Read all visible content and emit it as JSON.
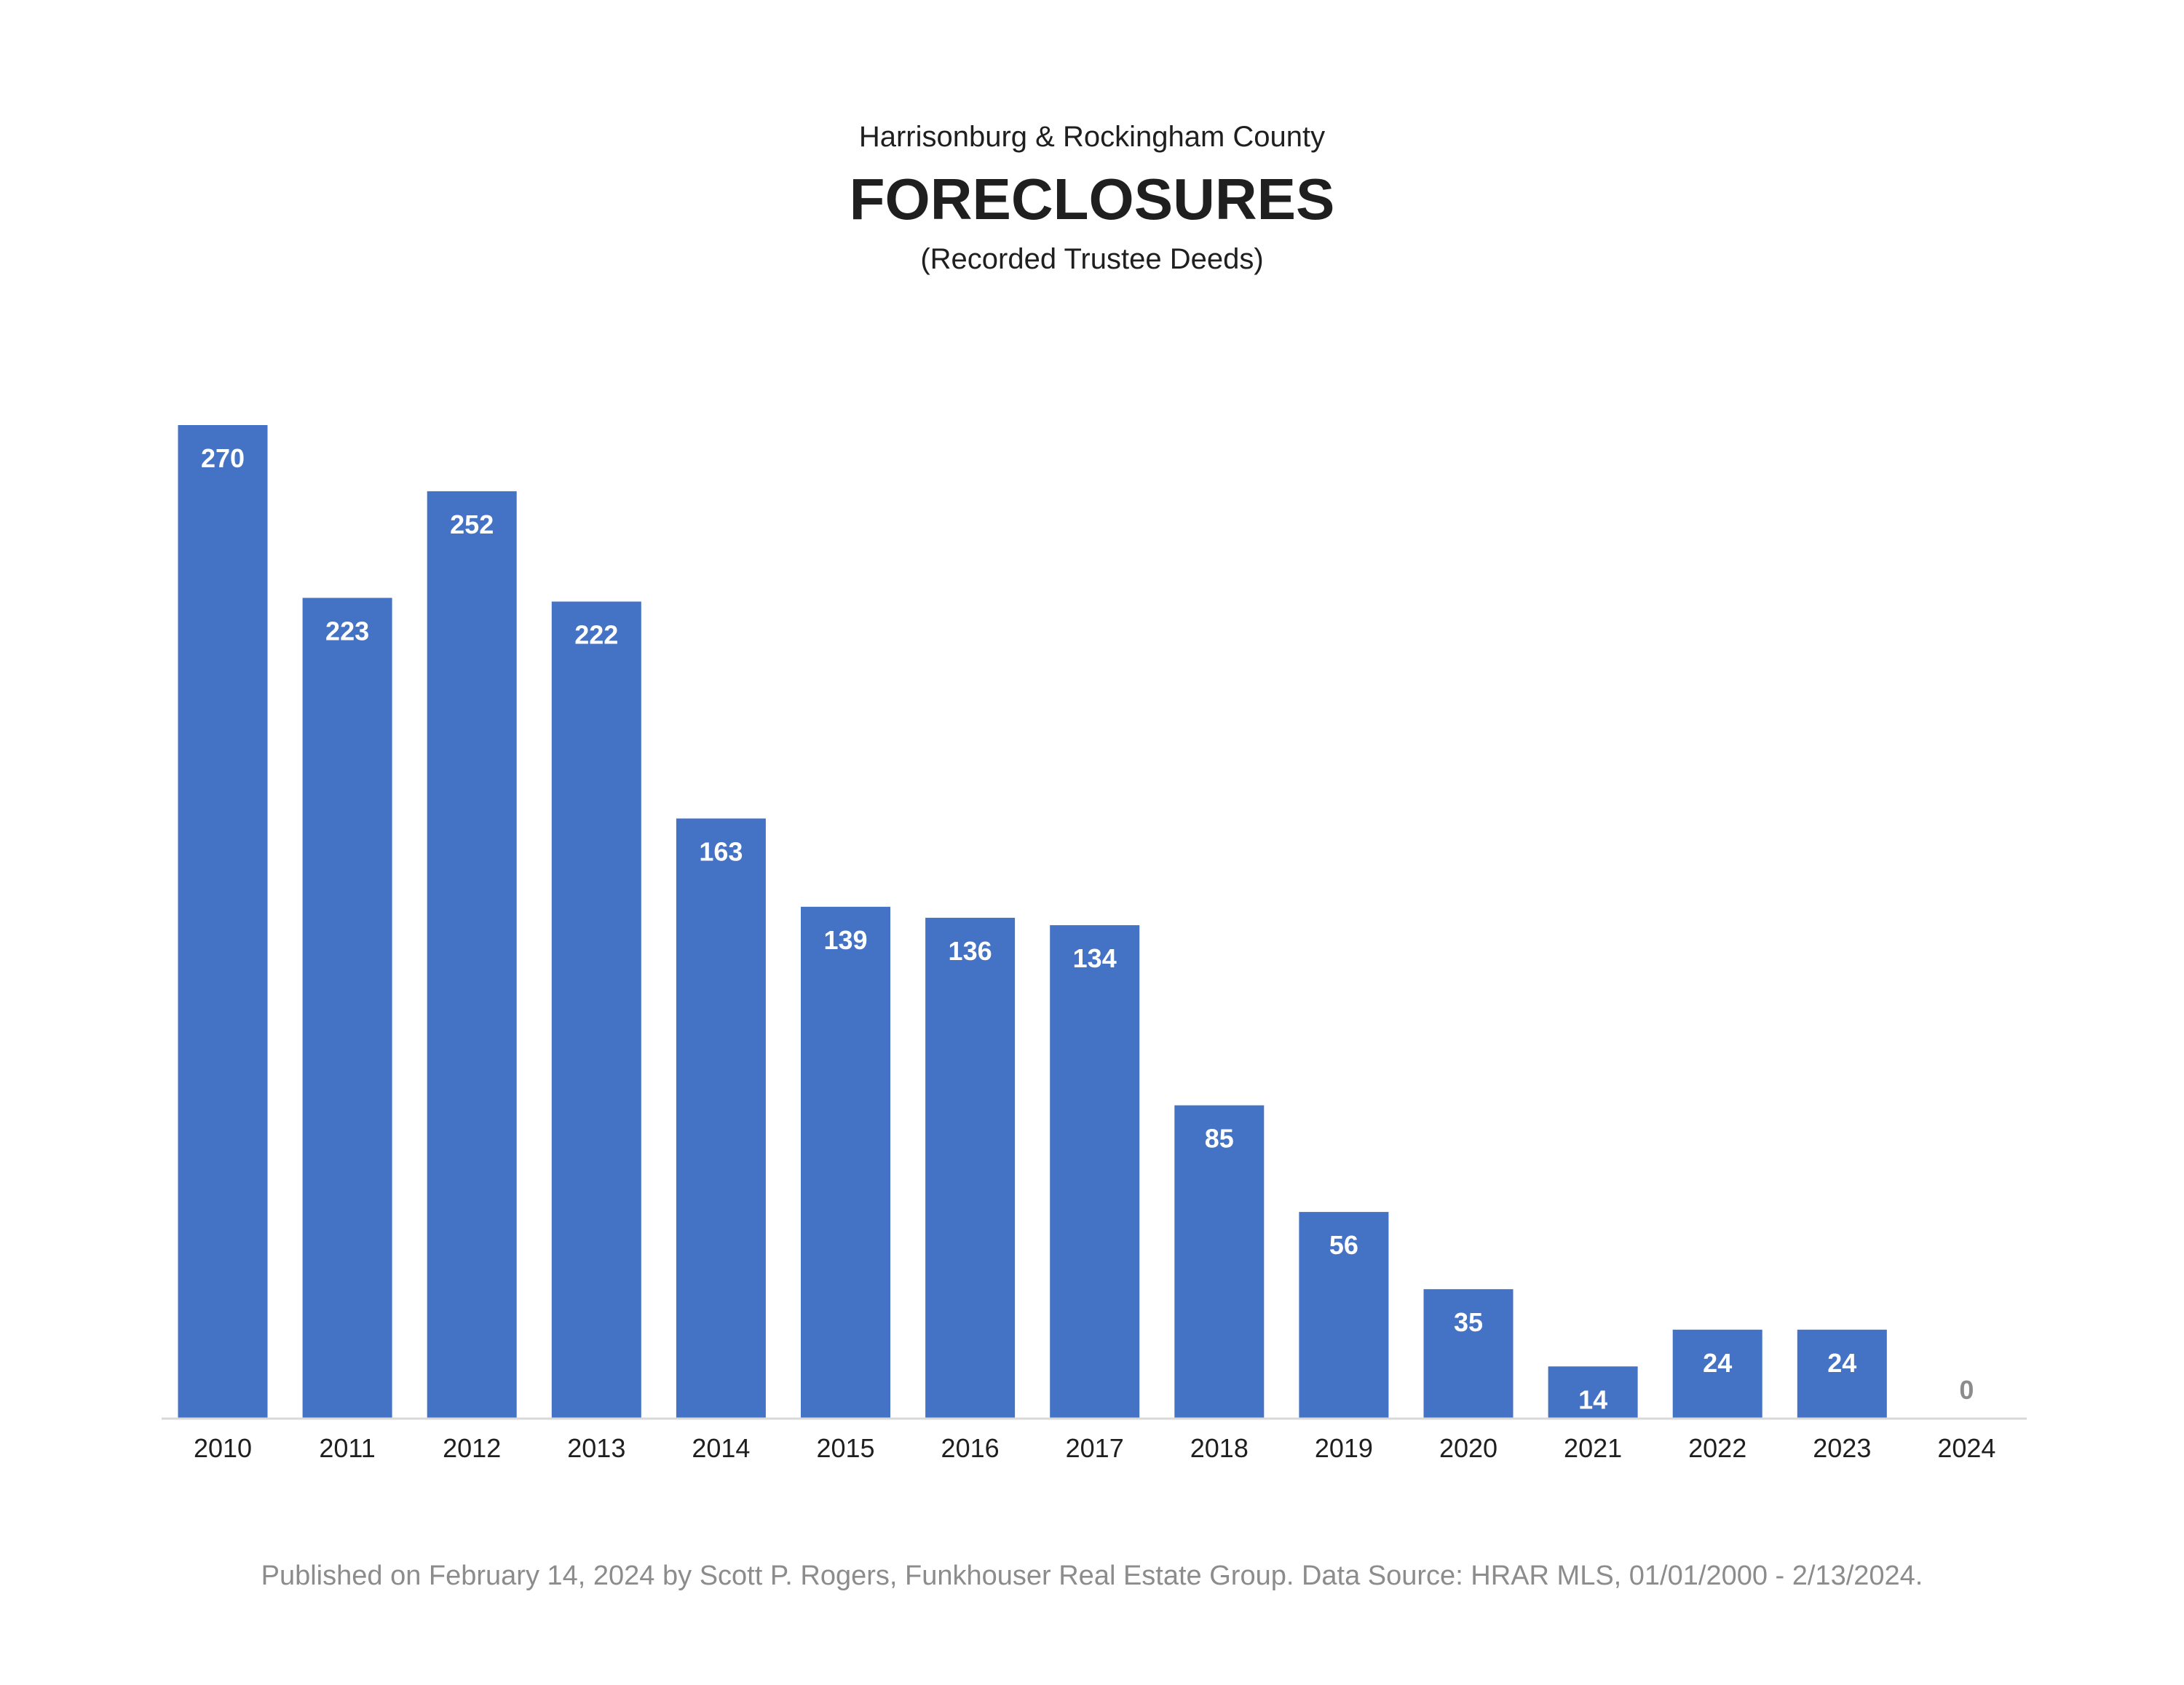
{
  "header": {
    "subtitle_top": "Harrisonburg & Rockingham County",
    "title": "FORECLOSURES",
    "subtitle_bottom": "(Recorded Trustee Deeds)"
  },
  "footer": {
    "note": "Published on February 14, 2024 by Scott P. Rogers, Funkhouser Real Estate Group. Data Source: HRAR MLS, 01/01/2000 - 2/13/2024."
  },
  "colors": {
    "bar": "#4472c4",
    "bar_label": "#ffffff",
    "zero_label": "#8c8c8c",
    "axis_line": "#d9d9d9",
    "tick_label": "#1f1f1f"
  },
  "chart_data": {
    "type": "bar",
    "title": "FORECLOSURES",
    "subtitle": "Harrisonburg & Rockingham County",
    "xlabel": "",
    "ylabel": "",
    "categories": [
      "2010",
      "2011",
      "2012",
      "2013",
      "2014",
      "2015",
      "2016",
      "2017",
      "2018",
      "2019",
      "2020",
      "2021",
      "2022",
      "2023",
      "2024"
    ],
    "values": [
      270,
      223,
      252,
      222,
      163,
      139,
      136,
      134,
      85,
      56,
      35,
      14,
      24,
      24,
      0
    ],
    "ylim": [
      0,
      270
    ],
    "grid": false,
    "legend": "none",
    "data_labels": true
  }
}
